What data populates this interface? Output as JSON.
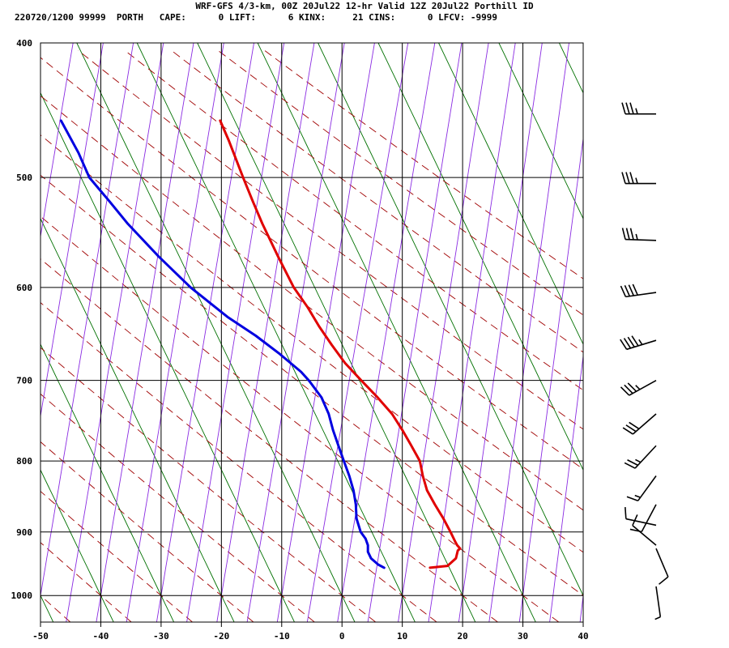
{
  "header": {
    "line1": "WRF-GFS 4/3-km, 00Z 20Jul22 12-hr Valid 12Z 20Jul22 Porthill ID",
    "line2": "220720/1200 99999  PORTH   CAPE:      0 LIFT:      6 KINX:     21 CINS:      0 LFCV: -9999"
  },
  "colors": {
    "temperature": "#e00000",
    "dewpoint": "#0000e0",
    "dry_adiabat": "#a00000",
    "moist_adiabat": "#8a2be2",
    "isotherm_skew": "#007000",
    "grid": "#000000",
    "barbs": "#000000"
  },
  "chart_data": {
    "type": "line",
    "title": "WRF-GFS 4/3-km, 00Z 20Jul22 12-hr Valid 12Z 20Jul22 Porthill ID",
    "xlabel": "",
    "ylabel": "",
    "x_ticks": [
      "-50",
      "-40",
      "-30",
      "-20",
      "-10",
      "0",
      "10",
      "20",
      "30",
      "40"
    ],
    "y_ticks": [
      "400",
      "500",
      "600",
      "700",
      "800",
      "900",
      "1000"
    ],
    "x_ticks_values": [
      -50,
      -40,
      -30,
      -20,
      -10,
      0,
      10,
      20,
      30,
      40
    ],
    "y_ticks_values": [
      400,
      500,
      600,
      700,
      800,
      900,
      1000
    ],
    "xlim": [
      -50,
      40
    ],
    "ylim": [
      1045,
      400
    ],
    "y_scale": "log",
    "grid": true,
    "series": [
      {
        "role": "temperature",
        "p": [
          955,
          952,
          940,
          928,
          925,
          920,
          915,
          900,
          880,
          860,
          840,
          820,
          800,
          780,
          760,
          740,
          720,
          700,
          680,
          660,
          640,
          620,
          600,
          570,
          540,
          520,
          500,
          470,
          455
        ],
        "x": [
          14.6,
          17.5,
          18.9,
          19.2,
          19.6,
          19.1,
          18.8,
          18.0,
          16.8,
          15.4,
          14.1,
          13.4,
          12.9,
          11.5,
          10.0,
          8.3,
          5.9,
          3.2,
          0.5,
          -1.7,
          -3.8,
          -5.7,
          -8.0,
          -10.6,
          -13.2,
          -14.8,
          -16.4,
          -18.8,
          -20.2
        ]
      },
      {
        "role": "dewpoint",
        "p": [
          955,
          950,
          940,
          930,
          920,
          910,
          900,
          880,
          860,
          840,
          820,
          800,
          780,
          760,
          740,
          720,
          700,
          690,
          670,
          650,
          630,
          600,
          570,
          540,
          520,
          500,
          480,
          455
        ],
        "x": [
          7.0,
          6.0,
          4.8,
          4.3,
          4.3,
          3.9,
          3.1,
          2.4,
          2.3,
          1.9,
          1.2,
          0.3,
          -0.6,
          -1.5,
          -2.2,
          -3.4,
          -5.5,
          -6.8,
          -10.3,
          -14.3,
          -19.0,
          -25.1,
          -30.4,
          -35.5,
          -38.6,
          -41.9,
          -43.7,
          -46.6
        ]
      }
    ],
    "wind_barbs": [
      {
        "p": 450,
        "speed_kt": 35,
        "dir_deg": 270
      },
      {
        "p": 505,
        "speed_kt": 35,
        "dir_deg": 270
      },
      {
        "p": 555,
        "speed_kt": 35,
        "dir_deg": 272
      },
      {
        "p": 605,
        "speed_kt": 40,
        "dir_deg": 262
      },
      {
        "p": 655,
        "speed_kt": 45,
        "dir_deg": 253
      },
      {
        "p": 700,
        "speed_kt": 35,
        "dir_deg": 241
      },
      {
        "p": 740,
        "speed_kt": 30,
        "dir_deg": 229
      },
      {
        "p": 780,
        "speed_kt": 25,
        "dir_deg": 223
      },
      {
        "p": 820,
        "speed_kt": 15,
        "dir_deg": 216
      },
      {
        "p": 860,
        "speed_kt": 10,
        "dir_deg": 208
      },
      {
        "p": 890,
        "speed_kt": 10,
        "dir_deg": 282
      },
      {
        "p": 920,
        "speed_kt": 10,
        "dir_deg": 310
      },
      {
        "p": 925,
        "speed_kt": 10,
        "dir_deg": 157
      },
      {
        "p": 985,
        "speed_kt": 5,
        "dir_deg": 172
      }
    ]
  }
}
